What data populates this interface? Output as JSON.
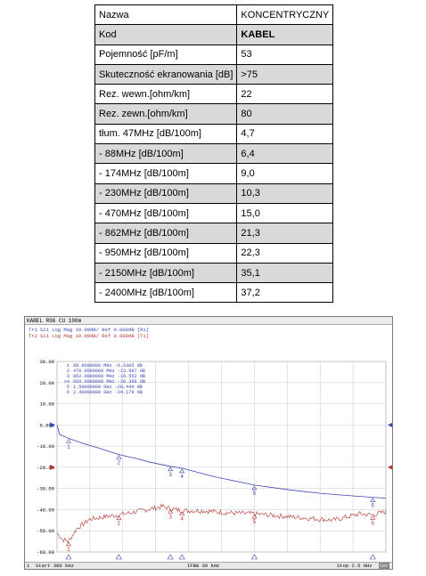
{
  "table": {
    "rows": [
      {
        "key": "Nazwa",
        "value": "KONCENTRYCZNY"
      },
      {
        "key": "Kod",
        "value": "KABEL"
      },
      {
        "key": "Pojemność [pF/m]",
        "value": "53"
      },
      {
        "key": "Skuteczność ekranowania [dB]",
        "value": ">75"
      },
      {
        "key": "Rez. wewn.[ohm/km]",
        "value": "22"
      },
      {
        "key": "Rez. zewn.[ohm/km]",
        "value": "80"
      },
      {
        "key": "tłum. 47MHz [dB/100m]",
        "value": "4,7"
      },
      {
        "key": "- 88MHz [dB/100m]",
        "value": "6,4"
      },
      {
        "key": "- 174MHz [dB/100m]",
        "value": "9,0"
      },
      {
        "key": "- 230MHz [dB/100m]",
        "value": "10,3"
      },
      {
        "key": "- 470MHz [dB/100m]",
        "value": "15,0"
      },
      {
        "key": "- 862MHz [dB/100m]",
        "value": "21,3"
      },
      {
        "key": "- 950MHz [dB/100m]",
        "value": "22,3"
      },
      {
        "key": "- 2150MHz [dB/100m]",
        "value": "35,1"
      },
      {
        "key": "- 2400MHz [dB/100m]",
        "value": "37,2"
      }
    ]
  },
  "analyzer": {
    "title": "KABEL RG6 CU 100m",
    "trace1_label": "Tr1",
    "trace1_text": "S21 Log Mag 10.00dB/ Ref 0.000dB [R1]",
    "trace2_label": "Tr2",
    "trace2_text": "S11 Log Mag 10.00dB/ Ref 0.000dB [T1]",
    "markers": [
      {
        "num": "1",
        "text": "88.0000000 MHz  -6.3305 dB"
      },
      {
        "num": "2",
        "text": "470.0000000 MHz  -13.997 dB"
      },
      {
        "num": "3",
        "text": "862.0000000 MHz  -19.552 dB"
      },
      {
        "num": ">4",
        "text": "950.0000000 MHz  -20.388 dB"
      },
      {
        "num": "5",
        "text": "1.50000000 GHz  -28.444 dB"
      },
      {
        "num": "6",
        "text": "2.40000000 GHz  -34.179 dB"
      }
    ],
    "status": {
      "channel": "1",
      "start": "Start 300 kHz",
      "ifbw": "IFBW 30 kHz",
      "stop": "Stop 2.5 GHz",
      "cor": "Cor"
    },
    "colors": {
      "trace1": "#3c46b4",
      "trace2": "#b4342c",
      "grid": "#c8c8c8"
    }
  },
  "chart_data": {
    "type": "line",
    "title": "KABEL RG6 CU 100m",
    "x_range_mhz": [
      0.3,
      2500
    ],
    "ylim": [
      -60,
      30
    ],
    "ytick_labels": [
      "30.00",
      "20.00",
      "10.00",
      "0.000",
      "-10.00",
      "-20.00",
      "-30.00",
      "-40.00",
      "-50.00",
      "-60.00"
    ],
    "grid": true,
    "series": [
      {
        "name": "S21 Log Mag",
        "x": [
          0.3,
          20,
          88,
          200,
          300,
          470,
          600,
          700,
          862,
          950,
          1200,
          1500,
          1800,
          2000,
          2200,
          2400,
          2500
        ],
        "y": [
          0,
          -4.5,
          -6.3,
          -8.8,
          -10.6,
          -14.0,
          -15.8,
          -17.5,
          -19.6,
          -20.4,
          -24.5,
          -28.4,
          -30.9,
          -32.3,
          -33.3,
          -34.2,
          -34.6
        ]
      },
      {
        "name": "S11 Log Mag",
        "x": [
          0.3,
          40,
          88,
          150,
          250,
          400,
          470,
          600,
          800,
          862,
          950,
          1100,
          1300,
          1500,
          1700,
          1900,
          2100,
          2300,
          2400,
          2500
        ],
        "y": [
          -51,
          -54,
          -55,
          -49,
          -44.5,
          -43,
          -42.5,
          -41,
          -38.5,
          -39.5,
          -40.5,
          -40.5,
          -41.5,
          -42,
          -43,
          -44,
          -45,
          -42,
          -42.5,
          -41
        ]
      }
    ],
    "marker_points": [
      {
        "label": "1",
        "x": 88,
        "y": -6.3305
      },
      {
        "label": "2",
        "x": 470,
        "y": -13.997
      },
      {
        "label": "3",
        "x": 862,
        "y": -19.552
      },
      {
        "label": "4",
        "x": 950,
        "y": -20.388
      },
      {
        "label": "5",
        "x": 1500,
        "y": -28.444
      },
      {
        "label": "6",
        "x": 2400,
        "y": -34.179
      }
    ]
  }
}
